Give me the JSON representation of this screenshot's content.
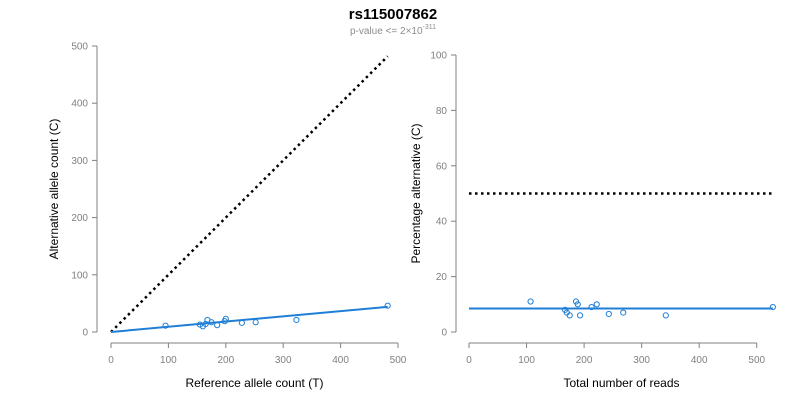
{
  "figure": {
    "title": "rs115007862",
    "subtitle_prefix": "p-value <= 2×10",
    "subtitle_exponent": "-311",
    "series_color": "#1f7fd6",
    "reference_color": "#000000"
  },
  "chart_data": [
    {
      "type": "scatter",
      "xlabel": "Reference allele count (T)",
      "ylabel": "Alternative allele count (C)",
      "xlim": [
        0,
        500
      ],
      "ylim": [
        0,
        500
      ],
      "xticks": [
        0,
        100,
        200,
        300,
        400,
        500
      ],
      "yticks": [
        0,
        100,
        200,
        300,
        400,
        500
      ],
      "grid": false,
      "points": [
        [
          95,
          11
        ],
        [
          155,
          13
        ],
        [
          160,
          10
        ],
        [
          165,
          14
        ],
        [
          168,
          21
        ],
        [
          175,
          17
        ],
        [
          185,
          12
        ],
        [
          198,
          19
        ],
        [
          200,
          23
        ],
        [
          228,
          16
        ],
        [
          252,
          17
        ],
        [
          323,
          21
        ],
        [
          482,
          46
        ]
      ],
      "fit_line": [
        [
          0,
          0
        ],
        [
          482,
          44
        ]
      ],
      "reference_line": [
        [
          0,
          0
        ],
        [
          482,
          482
        ]
      ]
    },
    {
      "type": "scatter",
      "xlabel": "Total number of reads",
      "ylabel": "Percentage alternative (C)",
      "xlim": [
        0,
        530
      ],
      "ylim": [
        0,
        100
      ],
      "xticks": [
        0,
        100,
        200,
        300,
        400,
        500
      ],
      "yticks": [
        0,
        20,
        40,
        60,
        80,
        100
      ],
      "grid": false,
      "points": [
        [
          107,
          11
        ],
        [
          167,
          8
        ],
        [
          170,
          7
        ],
        [
          175,
          6
        ],
        [
          186,
          11
        ],
        [
          189,
          10
        ],
        [
          193,
          6
        ],
        [
          213,
          9
        ],
        [
          222,
          10
        ],
        [
          243,
          6.5
        ],
        [
          268,
          7
        ],
        [
          342,
          6
        ],
        [
          528,
          9
        ]
      ],
      "fit_line": [
        [
          0,
          8.5
        ],
        [
          528,
          8.5
        ]
      ],
      "reference_line": [
        [
          0,
          50
        ],
        [
          528,
          50
        ]
      ]
    }
  ]
}
